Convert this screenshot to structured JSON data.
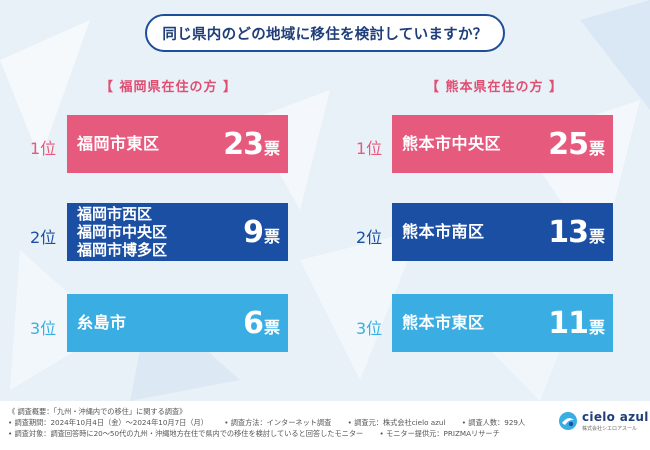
{
  "question": "同じ県内のどの地域に移住を検討していますか？",
  "left": {
    "heading": "【 福岡県在住の方 】",
    "rows": [
      {
        "rank": "1位",
        "names": [
          "福岡市東区"
        ],
        "count": "23",
        "unit": "票"
      },
      {
        "rank": "2位",
        "names": [
          "福岡市西区",
          "福岡市中央区",
          "福岡市博多区"
        ],
        "count": "9",
        "unit": "票"
      },
      {
        "rank": "3位",
        "names": [
          "糸島市"
        ],
        "count": "6",
        "unit": "票"
      }
    ]
  },
  "right": {
    "heading": "【 熊本県在住の方 】",
    "rows": [
      {
        "rank": "1位",
        "names": [
          "熊本市中央区"
        ],
        "count": "25",
        "unit": "票"
      },
      {
        "rank": "2位",
        "names": [
          "熊本市南区"
        ],
        "count": "13",
        "unit": "票"
      },
      {
        "rank": "3位",
        "names": [
          "熊本市東区"
        ],
        "count": "11",
        "unit": "票"
      }
    ]
  },
  "footer": {
    "line1": "《 調査概要：「九州・沖縄内での移住」に関する調査》",
    "line2a": "• 調査期間：2024年10月4日（金）〜2024年10月7日（月）",
    "line2b": "• 調査方法：インターネット調査",
    "line2c": "• 調査元：株式会社cielo azul",
    "line2d": "• 調査人数：929人",
    "line3a": "• 調査対象：調査回答時に20〜50代の九州・沖縄地方在住で県内での移住を検討していると回答したモニター",
    "line3b": "• モニター提供元：PRIZMAリサーチ"
  },
  "logo": {
    "brand": "cielo azul",
    "sub": "株式会社シエロアスール"
  },
  "colors": {
    "pink": "#e65a7e",
    "navy": "#1b4fa3",
    "sky": "#3aaee3",
    "title": "#1f3e7a"
  }
}
